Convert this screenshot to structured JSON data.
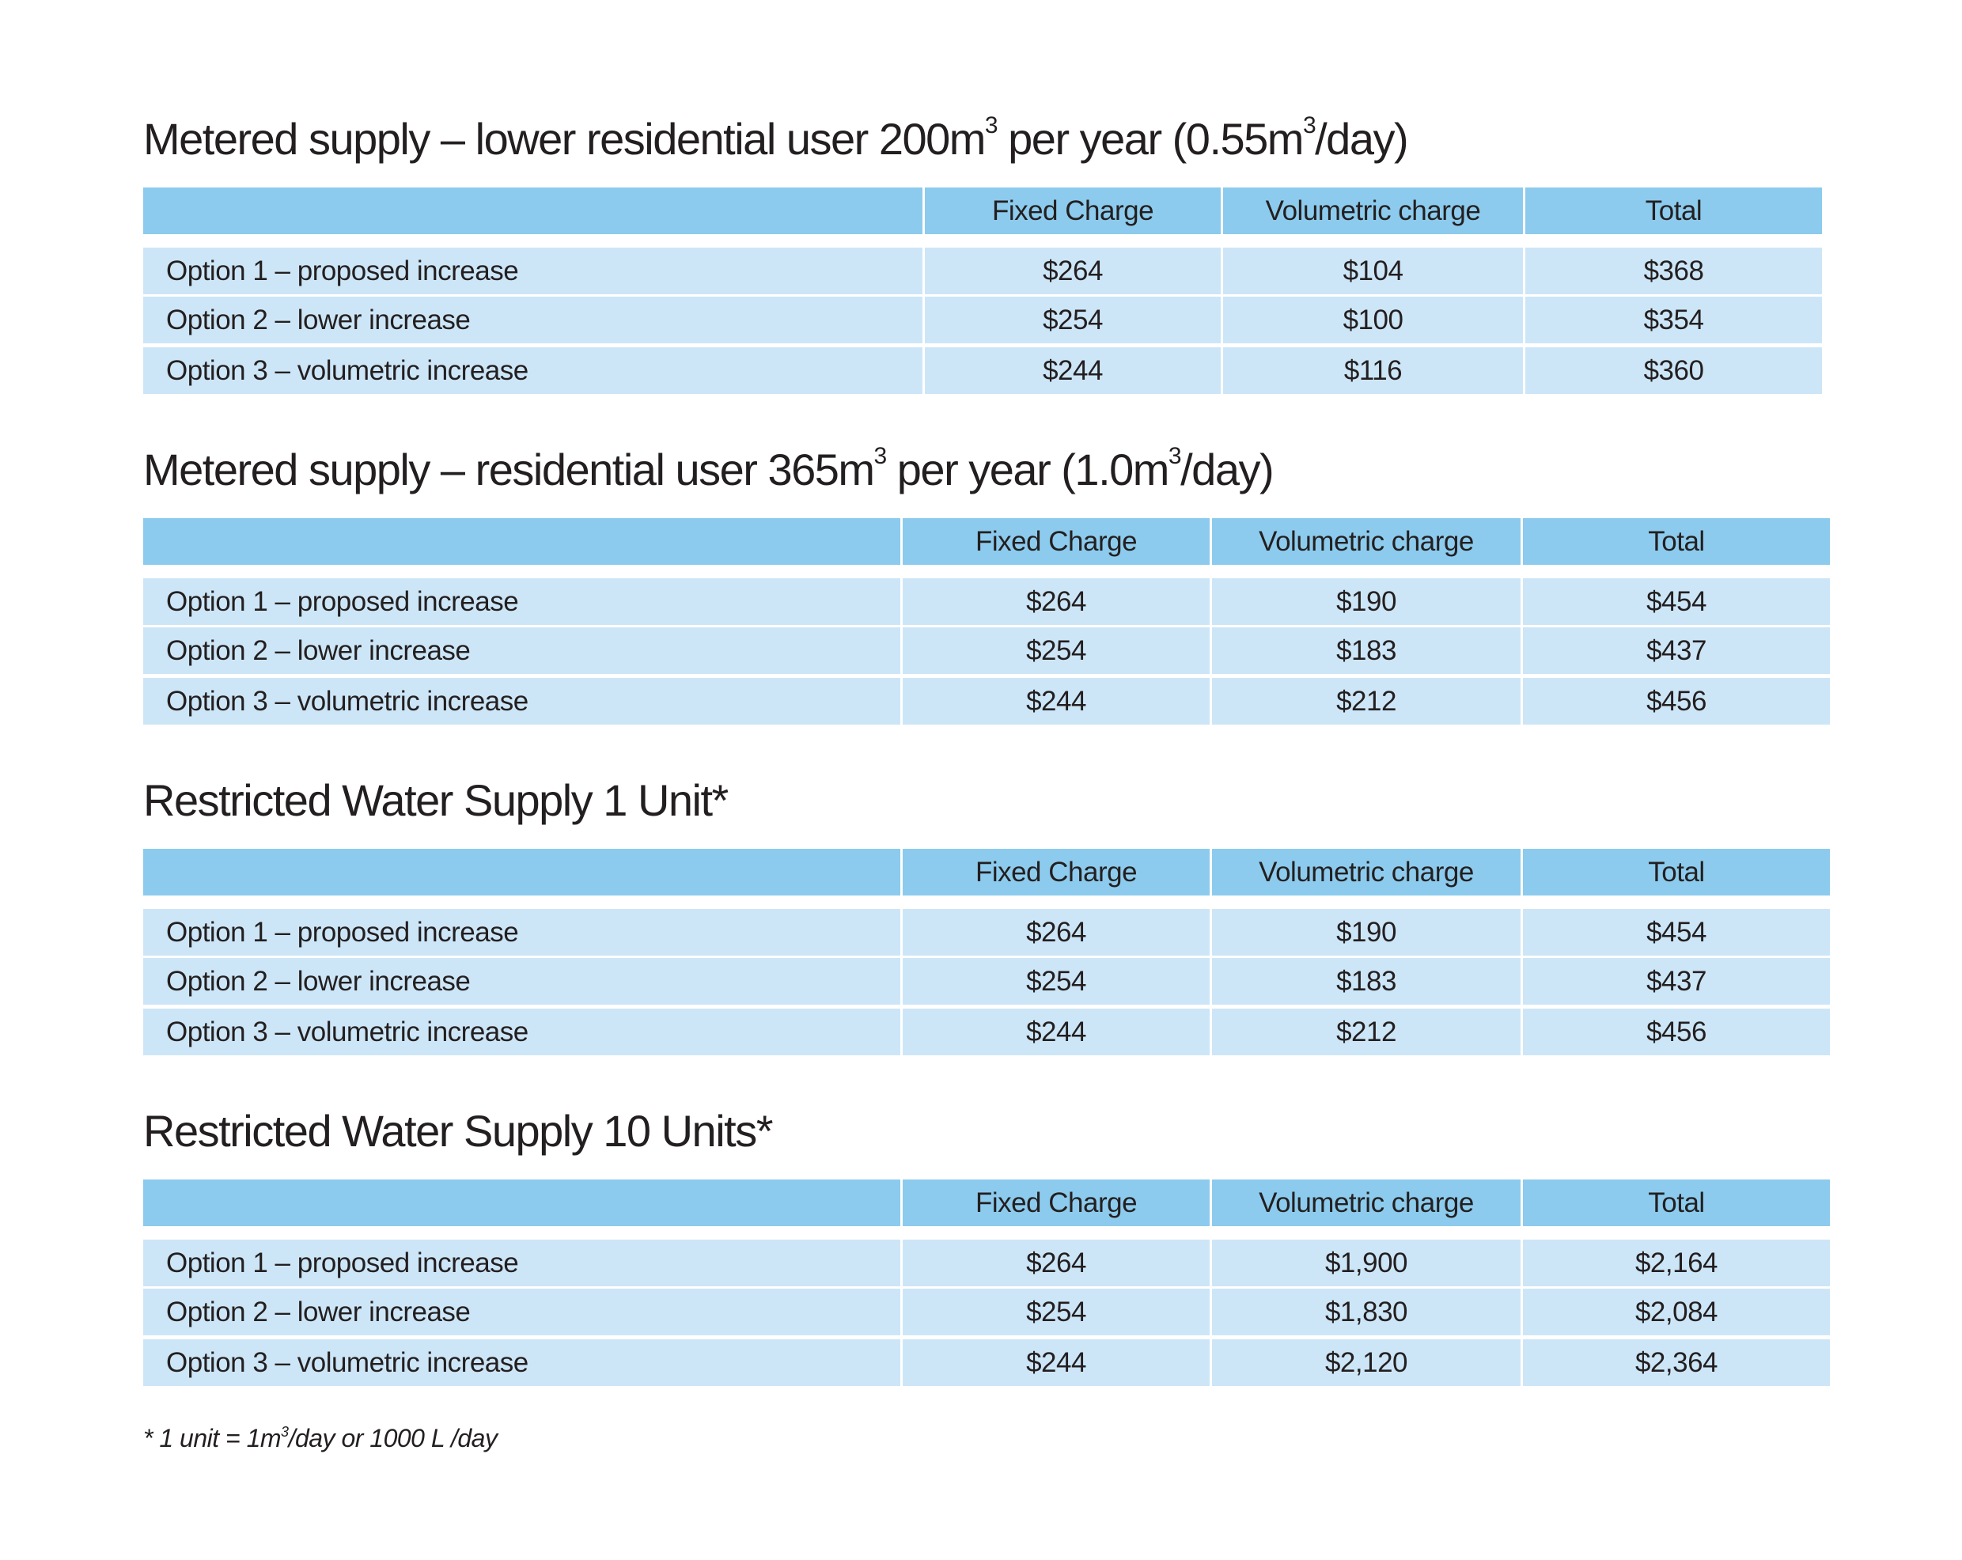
{
  "colors": {
    "header": "#8ccbed",
    "row": "#cde6f7",
    "text": "#231f20"
  },
  "columns": [
    "",
    "Fixed Charge",
    "Volumetric charge",
    "Total"
  ],
  "sections": [
    {
      "title_pre": "Metered supply – lower residential user 200m",
      "sup1": "3",
      "title_mid": " per year (0.55m",
      "sup2": "3",
      "title_post": "/day)",
      "rows": [
        [
          "Option 1 – proposed increase",
          "$264",
          "$104",
          "$368"
        ],
        [
          "Option 2 – lower increase",
          "$254",
          "$100",
          "$354"
        ],
        [
          "Option 3 – volumetric increase",
          "$244",
          "$116",
          "$360"
        ]
      ]
    },
    {
      "title_pre": "Metered supply – residential user 365m",
      "sup1": "3",
      "title_mid": " per year (1.0m",
      "sup2": "3",
      "title_post": "/day)",
      "rows": [
        [
          "Option 1 – proposed increase",
          "$264",
          "$190",
          "$454"
        ],
        [
          "Option 2 – lower increase",
          "$254",
          "$183",
          "$437"
        ],
        [
          "Option 3 – volumetric increase",
          "$244",
          "$212",
          "$456"
        ]
      ]
    },
    {
      "title_pre": "Restricted Water Supply 1 Unit*",
      "sup1": "",
      "title_mid": "",
      "sup2": "",
      "title_post": "",
      "rows": [
        [
          "Option 1 – proposed increase",
          "$264",
          "$190",
          "$454"
        ],
        [
          "Option 2 – lower increase",
          "$254",
          "$183",
          "$437"
        ],
        [
          "Option 3 – volumetric increase",
          "$244",
          "$212",
          "$456"
        ]
      ]
    },
    {
      "title_pre": "Restricted Water Supply 10 Units*",
      "sup1": "",
      "title_mid": "",
      "sup2": "",
      "title_post": "",
      "rows": [
        [
          "Option 1 – proposed increase",
          "$264",
          "$1,900",
          "$2,164"
        ],
        [
          "Option 2 – lower increase",
          "$254",
          "$1,830",
          "$2,084"
        ],
        [
          "Option 3 – volumetric increase",
          "$244",
          "$2,120",
          "$2,364"
        ]
      ]
    }
  ],
  "footnote": {
    "pre": "* 1 unit = 1m",
    "sup": "3",
    "post": "/day or 1000 L /day"
  }
}
